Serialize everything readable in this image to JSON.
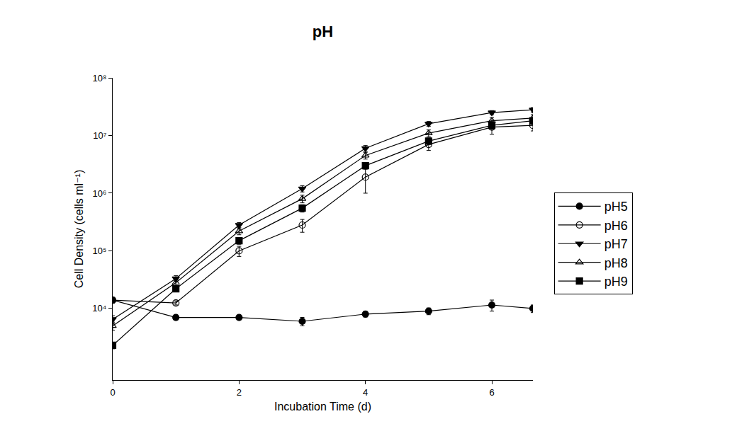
{
  "chart_data": {
    "type": "line",
    "title": "pH",
    "x_label": "Incubation Time (d)",
    "y_label": "Cell Density (cells ml⁻¹)",
    "x": [
      0,
      1,
      2,
      3,
      4,
      5,
      6,
      6.65
    ],
    "log": "y",
    "grid": false,
    "legend": "right",
    "xlim": [
      0,
      6.65
    ],
    "xticks": [
      0,
      2,
      4,
      6
    ],
    "ylim": [
      575,
      100000000
    ],
    "yticks": [
      {
        "value": 10000,
        "label": "10⁴"
      },
      {
        "value": 100000,
        "label": "10⁵"
      },
      {
        "value": 1000000,
        "label": "10⁶"
      },
      {
        "value": 10000000,
        "label": "10⁷"
      },
      {
        "value": 100000000,
        "label": "10⁸"
      }
    ],
    "series": [
      {
        "name": "pH5",
        "color": "#000000",
        "marker": "circle",
        "line_style": "solid",
        "values": [
          14000,
          7000,
          7000,
          6000,
          8000,
          9000,
          11500,
          10000
        ],
        "errors": [
          1500,
          700,
          500,
          1000,
          900,
          1200,
          2500,
          1500
        ]
      },
      {
        "name": "pH6",
        "color": "#000000",
        "marker": "circle-open",
        "line_style": "solid",
        "values": [
          14000,
          12500,
          100000,
          280000,
          1900000,
          7000000,
          14000000,
          15000000
        ],
        "errors": [
          1500,
          1000,
          20000,
          70000,
          900000,
          1500000,
          3500000,
          3000000
        ]
      },
      {
        "name": "pH7",
        "color": "#000000",
        "marker": "triangle-down",
        "line_style": "solid",
        "values": [
          6500,
          33000,
          280000,
          1200000,
          6000000,
          16000000,
          25000000,
          28000000
        ],
        "errors": [
          1000,
          4000,
          30000,
          150000,
          700000,
          1500000,
          2000000,
          2500000
        ]
      },
      {
        "name": "pH8",
        "color": "#000000",
        "marker": "triangle-up-open",
        "line_style": "solid",
        "values": [
          5000,
          28000,
          220000,
          800000,
          4500000,
          11000000,
          18000000,
          20000000
        ],
        "errors": [
          800,
          3000,
          30000,
          120000,
          600000,
          1500000,
          2500000,
          3000000
        ]
      },
      {
        "name": "pH9",
        "color": "#000000",
        "marker": "square",
        "line_style": "solid",
        "values": [
          2300,
          22000,
          150000,
          550000,
          3000000,
          8000000,
          15000000,
          18000000
        ],
        "errors": [
          300,
          2500,
          20000,
          80000,
          400000,
          1000000,
          2000000,
          2500000
        ]
      }
    ]
  }
}
